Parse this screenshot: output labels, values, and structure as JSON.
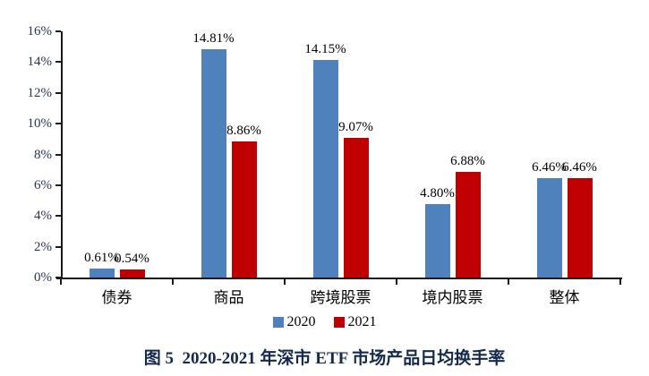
{
  "chart_data": {
    "type": "bar",
    "caption": "图 5  2020-2021 年深市 ETF 市场产品日均换手率",
    "categories": [
      "债券",
      "商品",
      "跨境股票",
      "境内股票",
      "整体"
    ],
    "series": [
      {
        "name": "2020",
        "color": "#4F81BD",
        "values": [
          0.61,
          14.81,
          14.15,
          4.8,
          6.46
        ],
        "labels": [
          "0.61%",
          "14.81%",
          "14.15%",
          "4.80%",
          "6.46%"
        ]
      },
      {
        "name": "2021",
        "color": "#C00000",
        "values": [
          0.54,
          8.86,
          9.07,
          6.88,
          6.46
        ],
        "labels": [
          "0.54%",
          "8.86%",
          "9.07%",
          "6.88%",
          "6.46%"
        ]
      }
    ],
    "ylim": [
      0,
      16
    ],
    "ytick_step": 2,
    "ytick_labels": [
      "0%",
      "2%",
      "4%",
      "6%",
      "8%",
      "10%",
      "12%",
      "14%",
      "16%"
    ],
    "grid": false,
    "legend_position": "bottom",
    "axis_color": "#1a1a1a"
  }
}
